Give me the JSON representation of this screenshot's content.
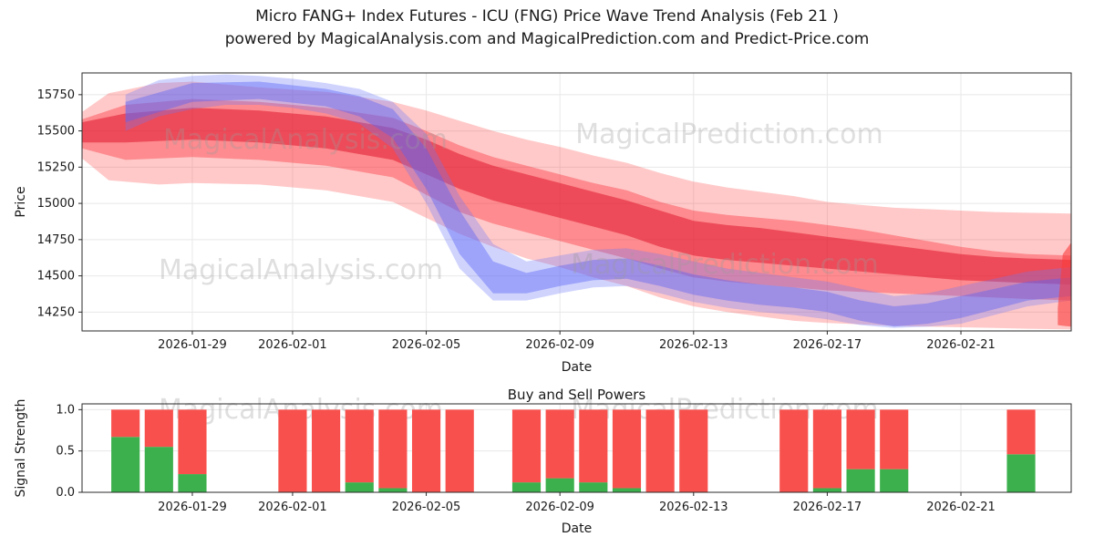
{
  "title": {
    "line1": "Micro FANG+ Index Futures - ICU (FNG) Price Wave Trend Analysis (Feb 21 )",
    "line2": "powered by MagicalAnalysis.com and MagicalPrediction.com and Predict-Price.com"
  },
  "watermarks": {
    "texts": [
      "MagicalAnalysis.com",
      "MagicalPrediction.com"
    ],
    "color": "#9a9a9a",
    "opacity": 0.32
  },
  "style": {
    "grid_color": "#e8e8e8",
    "spine_color": "#2a2a2a",
    "tick_color": "#1a1a1a"
  },
  "chart_data": [
    {
      "type": "area",
      "title": "",
      "xlabel": "Date",
      "ylabel": "Price",
      "xlim": [
        -0.3,
        29.3
      ],
      "ylim": [
        14120,
        15900
      ],
      "x_ticks": [
        {
          "day": 3,
          "label": "2026-01-29"
        },
        {
          "day": 6,
          "label": "2026-02-01"
        },
        {
          "day": 10,
          "label": "2026-02-05"
        },
        {
          "day": 14,
          "label": "2026-02-09"
        },
        {
          "day": 18,
          "label": "2026-02-13"
        },
        {
          "day": 22,
          "label": "2026-02-17"
        },
        {
          "day": 26,
          "label": "2026-02-21"
        }
      ],
      "y_ticks": [
        {
          "v": 14250,
          "label": "14250"
        },
        {
          "v": 14500,
          "label": "14500"
        },
        {
          "v": 14750,
          "label": "14750"
        },
        {
          "v": 15000,
          "label": "15000"
        },
        {
          "v": 15250,
          "label": "15250"
        },
        {
          "v": 15500,
          "label": "15500"
        },
        {
          "v": 15750,
          "label": "15750"
        }
      ],
      "bands": [
        {
          "name": "red-outer",
          "color": "rgba(255,60,60,0.28)",
          "points": [
            [
              -0.3,
              15310,
              15630
            ],
            [
              0.5,
              15160,
              15760
            ],
            [
              2,
              15130,
              15830
            ],
            [
              3,
              15140,
              15840
            ],
            [
              5,
              15130,
              15800
            ],
            [
              7,
              15090,
              15770
            ],
            [
              9,
              15010,
              15700
            ],
            [
              10,
              14900,
              15640
            ],
            [
              11,
              14790,
              15570
            ],
            [
              12,
              14700,
              15500
            ],
            [
              13,
              14620,
              15440
            ],
            [
              14,
              14560,
              15390
            ],
            [
              15,
              14490,
              15330
            ],
            [
              16,
              14430,
              15280
            ],
            [
              17,
              14350,
              15210
            ],
            [
              18,
              14290,
              15150
            ],
            [
              19,
              14250,
              15110
            ],
            [
              20,
              14220,
              15080
            ],
            [
              21,
              14190,
              15050
            ],
            [
              22,
              14175,
              15010
            ],
            [
              23,
              14165,
              14990
            ],
            [
              24,
              14155,
              14970
            ],
            [
              25,
              14150,
              14960
            ],
            [
              26,
              14145,
              14950
            ],
            [
              27,
              14140,
              14940
            ],
            [
              28,
              14135,
              14935
            ],
            [
              29.3,
              14130,
              14930
            ]
          ]
        },
        {
          "name": "red-mid",
          "color": "rgba(250,40,50,0.38)",
          "points": [
            [
              -0.3,
              15380,
              15580
            ],
            [
              1,
              15300,
              15680
            ],
            [
              3,
              15320,
              15720
            ],
            [
              5,
              15300,
              15700
            ],
            [
              7,
              15260,
              15660
            ],
            [
              9,
              15180,
              15590
            ],
            [
              10,
              15060,
              15500
            ],
            [
              11,
              14940,
              15400
            ],
            [
              12,
              14860,
              15320
            ],
            [
              13,
              14800,
              15260
            ],
            [
              14,
              14740,
              15200
            ],
            [
              15,
              14680,
              15140
            ],
            [
              16,
              14620,
              15090
            ],
            [
              17,
              14550,
              15010
            ],
            [
              18,
              14490,
              14950
            ],
            [
              19,
              14460,
              14920
            ],
            [
              20,
              14440,
              14900
            ],
            [
              21,
              14420,
              14880
            ],
            [
              22,
              14400,
              14850
            ],
            [
              23,
              14390,
              14820
            ],
            [
              24,
              14380,
              14780
            ],
            [
              25,
              14370,
              14740
            ],
            [
              26,
              14360,
              14700
            ],
            [
              27,
              14350,
              14670
            ],
            [
              28,
              14340,
              14650
            ],
            [
              29.3,
              14330,
              14640
            ]
          ]
        },
        {
          "name": "red-inner",
          "color": "rgba(222,18,40,0.52)",
          "points": [
            [
              -0.3,
              15420,
              15560
            ],
            [
              1,
              15420,
              15620
            ],
            [
              3,
              15440,
              15660
            ],
            [
              5,
              15420,
              15640
            ],
            [
              7,
              15380,
              15600
            ],
            [
              9,
              15300,
              15520
            ],
            [
              10,
              15200,
              15440
            ],
            [
              11,
              15100,
              15340
            ],
            [
              12,
              15020,
              15260
            ],
            [
              13,
              14960,
              15200
            ],
            [
              14,
              14900,
              15140
            ],
            [
              15,
              14840,
              15080
            ],
            [
              16,
              14780,
              15020
            ],
            [
              17,
              14700,
              14950
            ],
            [
              18,
              14640,
              14880
            ],
            [
              19,
              14610,
              14850
            ],
            [
              20,
              14590,
              14830
            ],
            [
              21,
              14570,
              14800
            ],
            [
              22,
              14550,
              14770
            ],
            [
              23,
              14530,
              14740
            ],
            [
              24,
              14510,
              14710
            ],
            [
              25,
              14490,
              14680
            ],
            [
              26,
              14470,
              14650
            ],
            [
              27,
              14460,
              14630
            ],
            [
              28,
              14450,
              14620
            ],
            [
              29.3,
              14440,
              14610
            ]
          ]
        },
        {
          "name": "blue-outer",
          "color": "rgba(110,120,250,0.32)",
          "points": [
            [
              1,
              15500,
              15750
            ],
            [
              2,
              15600,
              15850
            ],
            [
              3,
              15650,
              15880
            ],
            [
              4,
              15680,
              15890
            ],
            [
              5,
              15680,
              15880
            ],
            [
              6,
              15660,
              15860
            ],
            [
              7,
              15620,
              15830
            ],
            [
              8,
              15550,
              15790
            ],
            [
              9,
              15380,
              15700
            ],
            [
              10,
              15000,
              15480
            ],
            [
              11,
              14550,
              15050
            ],
            [
              12,
              14330,
              14720
            ],
            [
              13,
              14330,
              14600
            ],
            [
              14,
              14380,
              14640
            ],
            [
              15,
              14420,
              14680
            ],
            [
              16,
              14430,
              14690
            ],
            [
              17,
              14380,
              14650
            ],
            [
              18,
              14320,
              14600
            ],
            [
              19,
              14280,
              14550
            ],
            [
              20,
              14250,
              14520
            ],
            [
              21,
              14230,
              14490
            ],
            [
              22,
              14200,
              14460
            ],
            [
              23,
              14160,
              14410
            ],
            [
              24,
              14140,
              14360
            ],
            [
              25,
              14150,
              14380
            ],
            [
              26,
              14170,
              14430
            ],
            [
              27,
              14230,
              14480
            ],
            [
              28,
              14290,
              14530
            ],
            [
              29.3,
              14330,
              14560
            ]
          ]
        },
        {
          "name": "blue-inner",
          "color": "rgba(88,98,245,0.42)",
          "points": [
            [
              1,
              15560,
              15700
            ],
            [
              3,
              15700,
              15830
            ],
            [
              5,
              15720,
              15840
            ],
            [
              7,
              15670,
              15790
            ],
            [
              8,
              15600,
              15740
            ],
            [
              9,
              15450,
              15650
            ],
            [
              10,
              15100,
              15380
            ],
            [
              11,
              14650,
              14950
            ],
            [
              12,
              14380,
              14600
            ],
            [
              13,
              14380,
              14520
            ],
            [
              14,
              14430,
              14570
            ],
            [
              15,
              14470,
              14610
            ],
            [
              16,
              14480,
              14620
            ],
            [
              17,
              14430,
              14570
            ],
            [
              18,
              14370,
              14510
            ],
            [
              19,
              14330,
              14470
            ],
            [
              20,
              14300,
              14440
            ],
            [
              21,
              14280,
              14420
            ],
            [
              22,
              14250,
              14390
            ],
            [
              23,
              14190,
              14330
            ],
            [
              24,
              14150,
              14290
            ],
            [
              25,
              14170,
              14310
            ],
            [
              26,
              14210,
              14360
            ],
            [
              27,
              14270,
              14410
            ],
            [
              28,
              14330,
              14460
            ],
            [
              29.3,
              14360,
              14490
            ]
          ]
        },
        {
          "name": "red-edge-spike",
          "color": "rgba(250,60,60,0.6)",
          "points": [
            [
              28.9,
              14160,
              14280
            ],
            [
              29.05,
              14155,
              14650
            ],
            [
              29.3,
              14150,
              14730
            ]
          ]
        }
      ]
    },
    {
      "type": "bar",
      "title": "Buy and Sell Powers",
      "xlabel": "Date",
      "ylabel": "Signal Strength",
      "xlim": [
        -0.3,
        29.3
      ],
      "ylim": [
        0,
        1.07
      ],
      "bar_width_days": 0.85,
      "bar_total": 1.0,
      "colors": {
        "buy": "#3cb04c",
        "sell": "#f8514d"
      },
      "x_ticks": [
        {
          "day": 3,
          "label": "2026-01-29"
        },
        {
          "day": 6,
          "label": "2026-02-01"
        },
        {
          "day": 10,
          "label": "2026-02-05"
        },
        {
          "day": 14,
          "label": "2026-02-09"
        },
        {
          "day": 18,
          "label": "2026-02-13"
        },
        {
          "day": 22,
          "label": "2026-02-17"
        },
        {
          "day": 26,
          "label": "2026-02-21"
        }
      ],
      "y_ticks": [
        {
          "v": 0.0,
          "label": "0.0"
        },
        {
          "v": 0.5,
          "label": "0.5"
        },
        {
          "v": 1.0,
          "label": "1.0"
        }
      ],
      "bars": [
        {
          "day": 1,
          "buy": 0.67
        },
        {
          "day": 2,
          "buy": 0.55
        },
        {
          "day": 3,
          "buy": 0.22
        },
        {
          "day": 6,
          "buy": 0.0
        },
        {
          "day": 7,
          "buy": 0.0
        },
        {
          "day": 8,
          "buy": 0.12
        },
        {
          "day": 9,
          "buy": 0.05
        },
        {
          "day": 10,
          "buy": 0.0
        },
        {
          "day": 11,
          "buy": 0.0
        },
        {
          "day": 13,
          "buy": 0.12
        },
        {
          "day": 14,
          "buy": 0.17
        },
        {
          "day": 15,
          "buy": 0.12
        },
        {
          "day": 16,
          "buy": 0.05
        },
        {
          "day": 17,
          "buy": 0.0
        },
        {
          "day": 18,
          "buy": 0.0
        },
        {
          "day": 21,
          "buy": 0.0
        },
        {
          "day": 22,
          "buy": 0.05
        },
        {
          "day": 23,
          "buy": 0.28
        },
        {
          "day": 24,
          "buy": 0.28
        },
        {
          "day": 27.8,
          "buy": 0.46
        }
      ]
    }
  ]
}
